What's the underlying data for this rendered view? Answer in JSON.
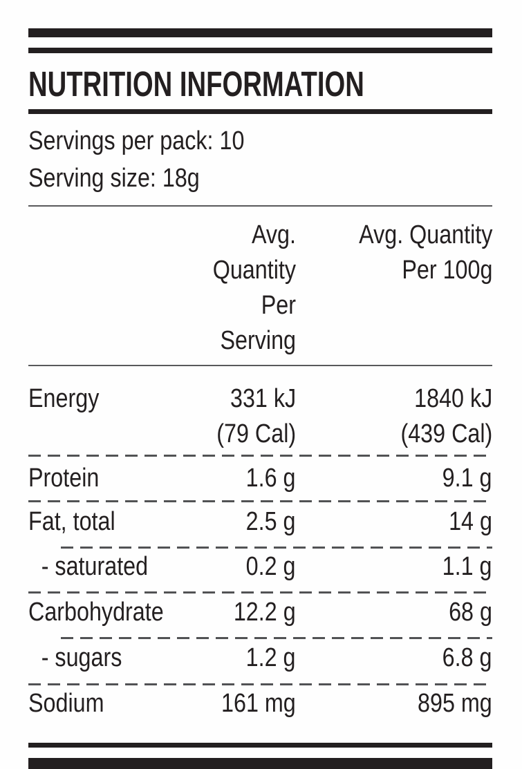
{
  "label": {
    "title": "NUTRITION INFORMATION",
    "servings_per_pack": "Servings per pack: 10",
    "serving_size": "Serving size: 18g",
    "columns": {
      "per_serving": "Avg. Quantity\nPer Serving",
      "per_100g": "Avg. Quantity\nPer 100g"
    },
    "rows": [
      {
        "label": "Energy",
        "per_serving": "331 kJ\n(79 Cal)",
        "per_100g": "1840 kJ\n(439 Cal)"
      },
      {
        "label": "Protein",
        "per_serving": "1.6 g",
        "per_100g": "9.1 g"
      },
      {
        "label": "Fat, total",
        "per_serving": "2.5 g",
        "per_100g": "14 g"
      },
      {
        "label": "- saturated",
        "per_serving": "0.2 g",
        "per_100g": "1.1 g"
      },
      {
        "label": "Carbohydrate",
        "per_serving": "12.2 g",
        "per_100g": "68 g"
      },
      {
        "label": "- sugars",
        "per_serving": "1.2 g",
        "per_100g": "6.8 g"
      },
      {
        "label": "Sodium",
        "per_serving": "161 mg",
        "per_100g": "895 mg"
      }
    ],
    "colors": {
      "ink": "#231f20",
      "thin_rule": "#58595b",
      "dashed_rule": "#515254",
      "background": "#fefefe"
    }
  }
}
